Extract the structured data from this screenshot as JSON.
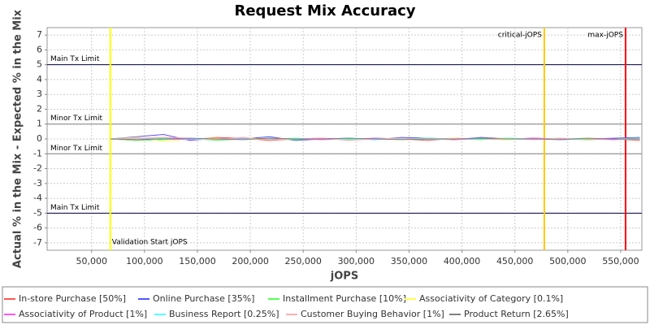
{
  "chart_data": {
    "type": "line",
    "title": "Request Mix Accuracy",
    "x_label": "jOPS",
    "y_label": "Actual % in the Mix - Expected % in the Mix",
    "x": [
      68000,
      93000,
      118000,
      143000,
      168000,
      193000,
      218000,
      243000,
      268000,
      293000,
      318000,
      343000,
      368000,
      393000,
      418000,
      443000,
      468000,
      493000,
      518000,
      543000,
      568000
    ],
    "series": [
      {
        "name": "In-store Purchase [50%]",
        "color": "#ff5555",
        "values": [
          0,
          -0.1,
          0.1,
          -0.05,
          0.1,
          0.05,
          -0.1,
          0,
          0.05,
          -0.05,
          0.05,
          0,
          -0.1,
          0.05,
          0,
          -0.05,
          0.05,
          0,
          -0.05,
          0,
          -0.1
        ]
      },
      {
        "name": "Online Purchase [35%]",
        "color": "#5555ff",
        "values": [
          0,
          0.15,
          0.3,
          -0.1,
          0.05,
          0,
          0.15,
          -0.1,
          0,
          0.05,
          -0.05,
          0.1,
          0.05,
          -0.05,
          0.1,
          0,
          0.05,
          -0.05,
          0,
          0.05,
          0.1
        ]
      },
      {
        "name": "Installment Purchase [10%]",
        "color": "#55ff55",
        "values": [
          0,
          -0.1,
          -0.05,
          0.05,
          -0.1,
          0,
          0.05,
          -0.05,
          0,
          -0.05,
          0.05,
          0,
          0.05,
          0,
          -0.05,
          0.05,
          0,
          0.05,
          -0.05,
          0,
          0.05
        ]
      },
      {
        "name": "Associativity of Category [0.1%]",
        "color": "#ffff55",
        "values": [
          0,
          0.1,
          -0.15,
          0,
          0.05,
          -0.05,
          0,
          0.05,
          -0.05,
          0,
          0,
          -0.05,
          0,
          0.05,
          0,
          -0.05,
          0,
          0,
          0.05,
          0,
          0
        ]
      },
      {
        "name": "Associativity of Product [1%]",
        "color": "#ff55ff",
        "values": [
          0,
          0.05,
          0,
          -0.05,
          0,
          0.05,
          0,
          0,
          -0.05,
          0,
          0.05,
          0,
          0,
          -0.05,
          0,
          0,
          0.05,
          0,
          0,
          -0.05,
          0
        ]
      },
      {
        "name": "Business Report [0.25%]",
        "color": "#55ffff",
        "values": [
          0,
          -0.05,
          0.05,
          0,
          -0.05,
          0,
          0,
          0.05,
          0,
          0,
          -0.05,
          0,
          0.05,
          0,
          0,
          0.05,
          0,
          -0.05,
          0,
          0,
          0.05
        ]
      },
      {
        "name": "Customer Buying Behavior [1%]",
        "color": "#ffafaf",
        "values": [
          0,
          0.05,
          0.1,
          0.05,
          -0.05,
          0.1,
          -0.05,
          0,
          0.05,
          -0.1,
          0,
          0.05,
          -0.05,
          0,
          0.05,
          0,
          -0.05,
          0.05,
          0,
          0,
          -0.05
        ]
      },
      {
        "name": "Product Return [2.65%]",
        "color": "#808080",
        "values": [
          0,
          -0.05,
          0,
          0.05,
          0,
          -0.05,
          0.05,
          0,
          0,
          0.05,
          0,
          -0.05,
          0,
          0,
          0.05,
          0,
          0,
          -0.05,
          0.05,
          0,
          0
        ]
      }
    ],
    "xlim": [
      8000,
      570000
    ],
    "xticks": [
      {
        "value": 50000,
        "label": "50,000"
      },
      {
        "value": 100000,
        "label": "100,000"
      },
      {
        "value": 150000,
        "label": "150,000"
      },
      {
        "value": 200000,
        "label": "200,000"
      },
      {
        "value": 250000,
        "label": "250,000"
      },
      {
        "value": 300000,
        "label": "300,000"
      },
      {
        "value": 350000,
        "label": "350,000"
      },
      {
        "value": 400000,
        "label": "400,000"
      },
      {
        "value": 450000,
        "label": "450,000"
      },
      {
        "value": 500000,
        "label": "500,000"
      },
      {
        "value": 550000,
        "label": "550,000"
      }
    ],
    "ylim": [
      -7.5,
      7.5
    ],
    "yticks": [
      -7,
      -6,
      -5,
      -4,
      -3,
      -2,
      -1,
      0,
      1,
      2,
      3,
      4,
      5,
      6,
      7
    ],
    "grid": true,
    "y_markers": [
      {
        "value": 5,
        "label": "Main Tx Limit",
        "color": "#000040"
      },
      {
        "value": 1,
        "label": "Minor Tx Limit",
        "color": "#808080"
      },
      {
        "value": -1,
        "label": "Minor Tx Limit",
        "color": "#808080"
      },
      {
        "value": -5,
        "label": "Main Tx Limit",
        "color": "#000040"
      }
    ],
    "x_markers": [
      {
        "value": 67700,
        "label": "Validation Start jOPS",
        "color": "#ffff00"
      },
      {
        "value": 477800,
        "label": "critical-jOPS",
        "color": "#ffc800"
      },
      {
        "value": 554600,
        "label": "max-jOPS",
        "color": "#ff0000"
      }
    ],
    "legend": "bottom"
  }
}
